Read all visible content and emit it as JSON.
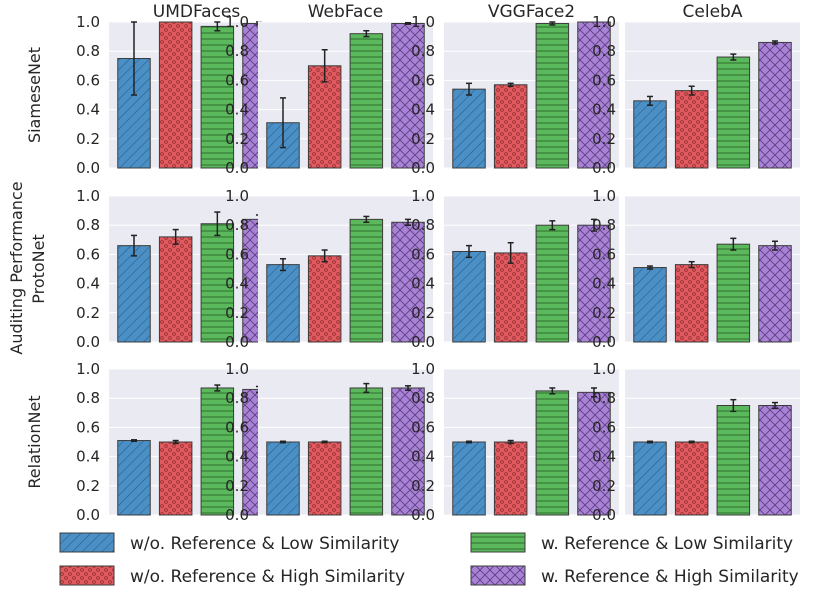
{
  "chart_data": {
    "type": "bar",
    "ylabel": "Auditing Performance",
    "ylim": [
      0,
      1
    ],
    "yticks": [
      "0.0",
      "0.2",
      "0.4",
      "0.6",
      "0.8",
      "1.0"
    ],
    "columns": [
      "UMDFaces",
      "WebFace",
      "VGGFace2",
      "CelebA"
    ],
    "rows": [
      "SiameseNet",
      "ProtoNet",
      "RelationNet"
    ],
    "series": [
      {
        "name": "w/o. Reference & Low Similarity",
        "color": "#4a8fc5",
        "pattern": "diag"
      },
      {
        "name": "w/o. Reference & High Similarity",
        "color": "#e05a5f",
        "pattern": "stars"
      },
      {
        "name": "w. Reference & Low Similarity",
        "color": "#5cb85c",
        "pattern": "hlines"
      },
      {
        "name": "w. Reference & High Similarity",
        "color": "#a882d4",
        "pattern": "cross"
      }
    ],
    "panels": [
      {
        "row": "SiameseNet",
        "column": "UMDFaces",
        "values": [
          0.75,
          1.0,
          0.97,
          0.99
        ],
        "errors": [
          0.25,
          0.0,
          0.03,
          0.01
        ]
      },
      {
        "row": "SiameseNet",
        "column": "WebFace",
        "values": [
          0.31,
          0.7,
          0.92,
          0.99
        ],
        "errors": [
          0.17,
          0.11,
          0.02,
          0.005
        ]
      },
      {
        "row": "SiameseNet",
        "column": "VGGFace2",
        "values": [
          0.54,
          0.57,
          0.99,
          1.0
        ],
        "errors": [
          0.04,
          0.01,
          0.01,
          0.0
        ]
      },
      {
        "row": "SiameseNet",
        "column": "CelebA",
        "values": [
          0.46,
          0.53,
          0.76,
          0.86
        ],
        "errors": [
          0.03,
          0.03,
          0.02,
          0.01
        ]
      },
      {
        "row": "ProtoNet",
        "column": "UMDFaces",
        "values": [
          0.66,
          0.72,
          0.81,
          0.84
        ],
        "errors": [
          0.07,
          0.05,
          0.08,
          0.03
        ]
      },
      {
        "row": "ProtoNet",
        "column": "WebFace",
        "values": [
          0.53,
          0.59,
          0.84,
          0.82
        ],
        "errors": [
          0.04,
          0.04,
          0.02,
          0.02
        ]
      },
      {
        "row": "ProtoNet",
        "column": "VGGFace2",
        "values": [
          0.62,
          0.61,
          0.8,
          0.8
        ],
        "errors": [
          0.04,
          0.07,
          0.03,
          0.04
        ]
      },
      {
        "row": "ProtoNet",
        "column": "CelebA",
        "values": [
          0.51,
          0.53,
          0.67,
          0.66
        ],
        "errors": [
          0.01,
          0.02,
          0.04,
          0.03
        ]
      },
      {
        "row": "RelationNet",
        "column": "UMDFaces",
        "values": [
          0.51,
          0.5,
          0.87,
          0.86
        ],
        "errors": [
          0.005,
          0.01,
          0.02,
          0.02
        ]
      },
      {
        "row": "RelationNet",
        "column": "WebFace",
        "values": [
          0.5,
          0.5,
          0.87,
          0.87
        ],
        "errors": [
          0.005,
          0.005,
          0.03,
          0.015
        ]
      },
      {
        "row": "RelationNet",
        "column": "VGGFace2",
        "values": [
          0.5,
          0.5,
          0.85,
          0.84
        ],
        "errors": [
          0.005,
          0.01,
          0.02,
          0.03
        ]
      },
      {
        "row": "RelationNet",
        "column": "CelebA",
        "values": [
          0.5,
          0.5,
          0.75,
          0.75
        ],
        "errors": [
          0.005,
          0.005,
          0.04,
          0.02
        ]
      }
    ],
    "legend": {
      "placement": "bottom",
      "entries": [
        "w/o. Reference & Low Similarity",
        "w/o. Reference & High Similarity",
        "w. Reference & Low Similarity",
        "w. Reference & High Similarity"
      ]
    }
  }
}
